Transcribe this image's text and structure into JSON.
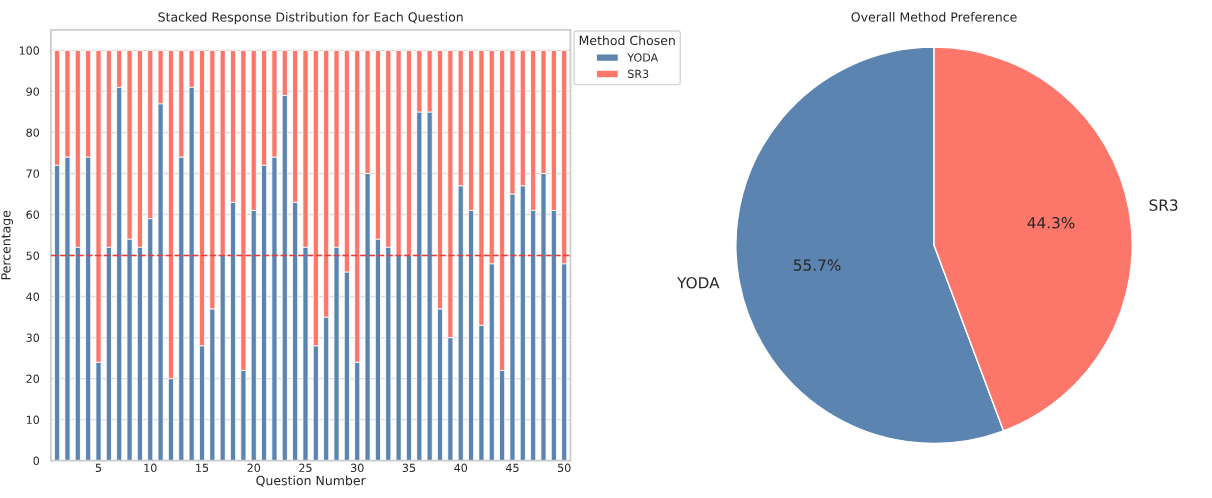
{
  "chart_data": [
    {
      "type": "bar",
      "title": "Stacked Response Distribution for Each Question",
      "xlabel": "Question Number",
      "ylabel": "Percentage",
      "legend_title": "Method Chosen",
      "categories": [
        null,
        null,
        null,
        null,
        "5",
        null,
        null,
        null,
        null,
        "10",
        null,
        null,
        null,
        null,
        "15",
        null,
        null,
        null,
        null,
        "20",
        null,
        null,
        null,
        null,
        "25",
        null,
        null,
        null,
        null,
        "30",
        null,
        null,
        null,
        null,
        "35",
        null,
        null,
        null,
        null,
        "40",
        null,
        null,
        null,
        null,
        "45",
        null,
        null,
        null,
        null,
        "50"
      ],
      "stacked": true,
      "series": [
        {
          "name": "YODA",
          "color": "#5b84b1",
          "values": [
            72,
            74,
            52,
            74,
            24,
            52,
            91,
            54,
            52,
            59,
            87,
            20,
            74,
            91,
            28,
            37,
            50,
            63,
            22,
            61,
            72,
            74,
            89,
            63,
            52,
            28,
            35,
            52,
            46,
            24,
            70,
            54,
            52,
            50,
            50,
            85,
            85,
            37,
            30,
            67,
            61,
            33,
            48,
            22,
            65,
            67,
            61,
            70,
            61,
            48
          ]
        },
        {
          "name": "SR3",
          "color": "#fc766a",
          "values": [
            28,
            26,
            48,
            26,
            76,
            48,
            9,
            46,
            48,
            41,
            13,
            80,
            26,
            9,
            72,
            63,
            50,
            37,
            78,
            39,
            28,
            26,
            11,
            37,
            48,
            72,
            65,
            48,
            54,
            76,
            30,
            46,
            48,
            50,
            50,
            15,
            15,
            63,
            70,
            33,
            39,
            67,
            52,
            78,
            35,
            33,
            39,
            30,
            39,
            52
          ]
        }
      ],
      "ylim": [
        0,
        105
      ],
      "yticks": [
        0,
        10,
        20,
        30,
        40,
        50,
        60,
        70,
        80,
        90,
        100
      ],
      "grid": "y",
      "legend": "top right",
      "ref_lines": [
        {
          "axis": "y",
          "value": 50,
          "color": "#e8393a",
          "line_style": "dashed"
        }
      ]
    },
    {
      "type": "pie",
      "title": "Overall Method Preference",
      "categories": [
        "YODA",
        "SR3"
      ],
      "values": [
        55.7,
        44.3
      ],
      "colors": [
        "#5b84b1",
        "#fc766a"
      ],
      "value_labels": [
        "55.7%",
        "44.3%"
      ]
    }
  ]
}
